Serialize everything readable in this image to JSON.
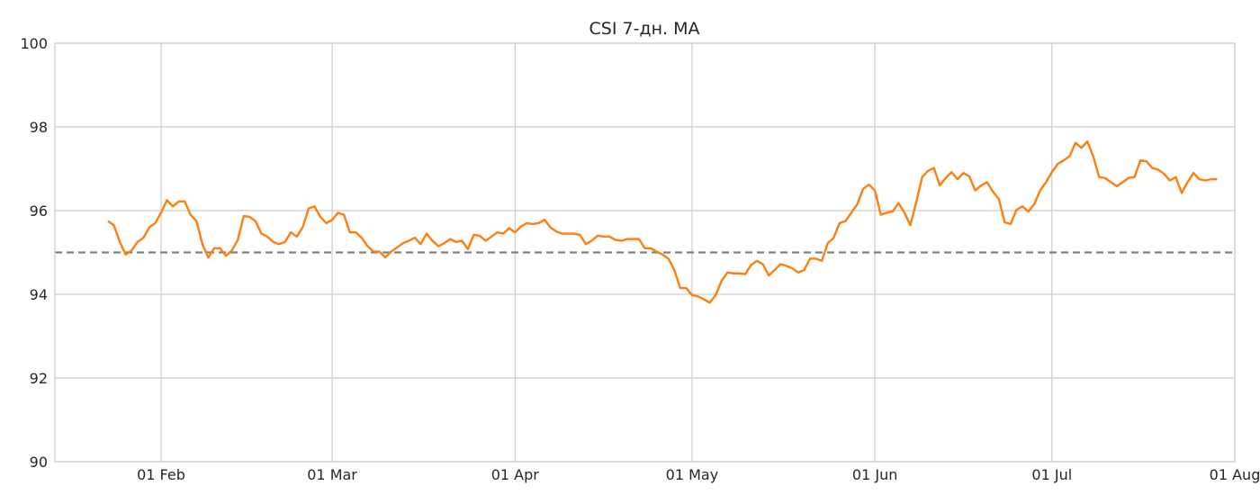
{
  "chart_data": {
    "type": "line",
    "title": "CSI 7-дн. MA",
    "xlabel": "",
    "ylabel": "",
    "x_range": [
      "2024-01-14",
      "2024-08-01"
    ],
    "ylim": [
      90,
      100
    ],
    "y_ticks": [
      90,
      92,
      94,
      96,
      98,
      100
    ],
    "x_ticks": [
      {
        "date": "2024-02-01",
        "label": "01 Feb"
      },
      {
        "date": "2024-03-01",
        "label": "01 Mar"
      },
      {
        "date": "2024-04-01",
        "label": "01 Apr"
      },
      {
        "date": "2024-05-01",
        "label": "01 May"
      },
      {
        "date": "2024-06-01",
        "label": "01 Jun"
      },
      {
        "date": "2024-07-01",
        "label": "01 Jul"
      },
      {
        "date": "2024-08-01",
        "label": "01 Aug"
      }
    ],
    "grid": true,
    "reference_line": {
      "y": 95,
      "color": "#808080",
      "style": "dashed"
    },
    "series": [
      {
        "color": "#ff7f0e",
        "x_start": "2024-01-23",
        "x_step_days": 1,
        "values": [
          95.75,
          95.65,
          95.25,
          94.95,
          95.05,
          95.25,
          95.35,
          95.6,
          95.7,
          95.95,
          96.25,
          96.1,
          96.22,
          96.22,
          95.9,
          95.75,
          95.2,
          94.88,
          95.1,
          95.1,
          94.92,
          95.05,
          95.3,
          95.87,
          95.85,
          95.75,
          95.45,
          95.38,
          95.25,
          95.2,
          95.25,
          95.48,
          95.38,
          95.6,
          96.05,
          96.1,
          95.85,
          95.7,
          95.78,
          95.95,
          95.9,
          95.48,
          95.48,
          95.35,
          95.15,
          95.02,
          95.02,
          94.88,
          95.02,
          95.12,
          95.22,
          95.28,
          95.35,
          95.2,
          95.45,
          95.28,
          95.15,
          95.22,
          95.32,
          95.25,
          95.28,
          95.08,
          95.42,
          95.4,
          95.28,
          95.38,
          95.48,
          95.45,
          95.58,
          95.48,
          95.62,
          95.7,
          95.68,
          95.7,
          95.78,
          95.6,
          95.5,
          95.45,
          95.45,
          95.45,
          95.42,
          95.2,
          95.28,
          95.4,
          95.38,
          95.38,
          95.3,
          95.28,
          95.32,
          95.32,
          95.32,
          95.1,
          95.1,
          95.02,
          94.95,
          94.85,
          94.58,
          94.15,
          94.15,
          93.98,
          93.95,
          93.88,
          93.8,
          93.98,
          94.32,
          94.52,
          94.5,
          94.5,
          94.48,
          94.7,
          94.8,
          94.72,
          94.45,
          94.58,
          94.72,
          94.68,
          94.62,
          94.52,
          94.58,
          94.85,
          94.85,
          94.8,
          95.22,
          95.35,
          95.7,
          95.75,
          95.95,
          96.15,
          96.52,
          96.62,
          96.48,
          95.9,
          95.95,
          95.98,
          96.18,
          95.95,
          95.65,
          96.2,
          96.8,
          96.95,
          97.02,
          96.6,
          96.78,
          96.92,
          96.75,
          96.9,
          96.82,
          96.48,
          96.6,
          96.68,
          96.45,
          96.28,
          95.72,
          95.68,
          96.02,
          96.1,
          95.98,
          96.15,
          96.48,
          96.68,
          96.92,
          97.12,
          97.2,
          97.3,
          97.62,
          97.5,
          97.65,
          97.3,
          96.8,
          96.78,
          96.68,
          96.58,
          96.68,
          96.78,
          96.8,
          97.2,
          97.18,
          97.02,
          96.98,
          96.88,
          96.72,
          96.8,
          96.42,
          96.68,
          96.9,
          96.75,
          96.72,
          96.75,
          96.75
        ]
      }
    ]
  }
}
